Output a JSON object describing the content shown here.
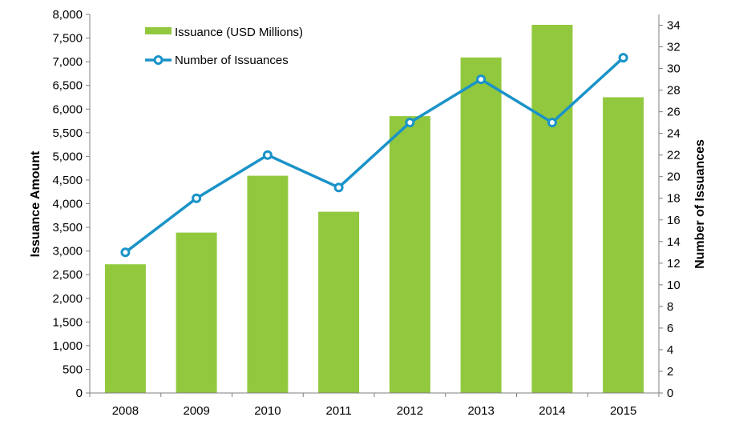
{
  "chart_data": {
    "type": "bar",
    "categories": [
      "2008",
      "2009",
      "2010",
      "2011",
      "2012",
      "2013",
      "2014",
      "2015"
    ],
    "series": [
      {
        "name": "Issuance (USD Millions)",
        "type": "bar",
        "axis": "left",
        "color": "#92c83e",
        "values": [
          2720,
          3390,
          4590,
          3830,
          5850,
          7090,
          7780,
          6250
        ]
      },
      {
        "name": "Number of Issuances",
        "type": "line",
        "axis": "right",
        "color": "#1a93c8",
        "values": [
          13,
          18,
          22,
          19,
          25,
          29,
          25,
          31
        ]
      }
    ],
    "ylabel": "Issuance Amount",
    "y2label": "Number of Issuances",
    "ylim": [
      0,
      8000
    ],
    "y2lim": [
      0,
      35
    ],
    "yticks": [
      "0",
      "500",
      "1,000",
      "1,500",
      "2,000",
      "2,500",
      "3,000",
      "3,500",
      "4,000",
      "4,500",
      "5,000",
      "5,500",
      "6,000",
      "6,500",
      "7,000",
      "7,500",
      "8,000"
    ],
    "y2ticks": [
      "0",
      "2",
      "4",
      "6",
      "8",
      "10",
      "12",
      "14",
      "16",
      "18",
      "20",
      "22",
      "24",
      "26",
      "28",
      "30",
      "32",
      "34"
    ],
    "grid": false,
    "legend_position": "top-left"
  }
}
